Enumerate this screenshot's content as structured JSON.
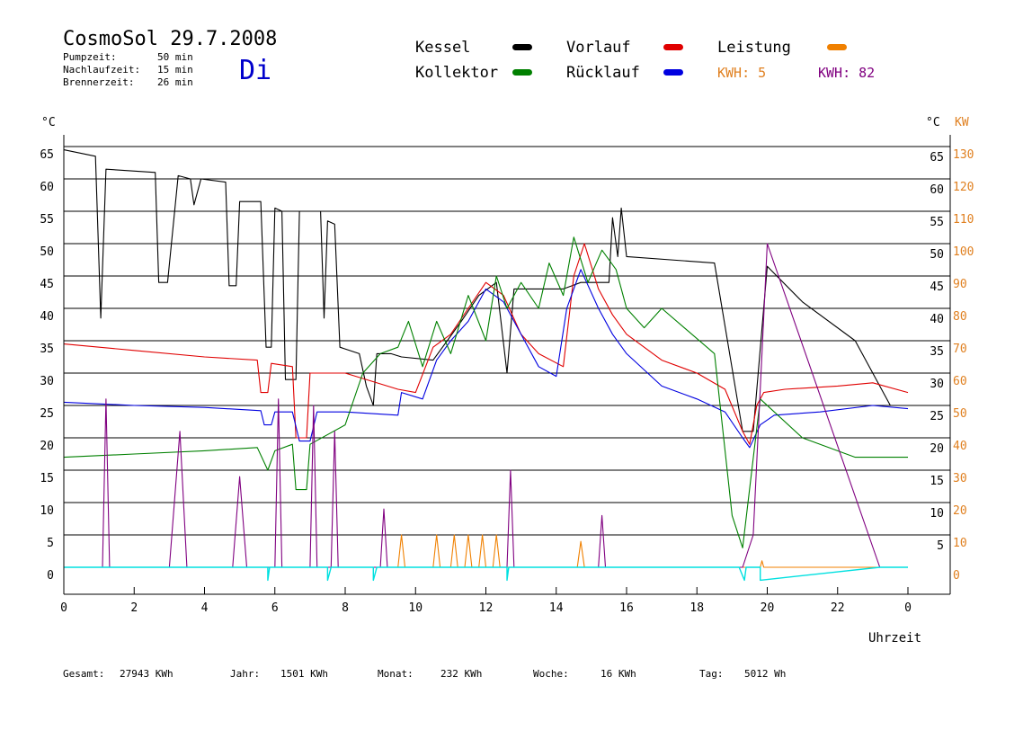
{
  "header": {
    "title": "CosmoSol 29.7.2008",
    "day": "Di",
    "stats": [
      {
        "label": "Pumpzeit:",
        "value": "50 min"
      },
      {
        "label": "Nachlaufzeit:",
        "value": "15 min"
      },
      {
        "label": "Brennerzeit:",
        "value": "26 min"
      }
    ]
  },
  "legend": {
    "items": [
      {
        "label": "Kessel",
        "color": "#000000"
      },
      {
        "label": "Vorlauf",
        "color": "#e00000"
      },
      {
        "label": "Leistung",
        "color": "#f08000"
      },
      {
        "label": "Kollektor",
        "color": "#008000"
      },
      {
        "label": "Rücklauf",
        "color": "#0000e0"
      }
    ],
    "kwh_orange": "KWH: 5",
    "kwh_purple": "KWH: 82",
    "kwh_orange_color": "#e08020",
    "kwh_purple_color": "#800080"
  },
  "axes": {
    "left_unit": "°C",
    "right_unit_c": "°C",
    "right_unit_kw": "KW",
    "x_label": "Uhrzeit"
  },
  "footer": [
    {
      "label": "Gesamt:",
      "value": "27943 KWh"
    },
    {
      "label": "Jahr:",
      "value": "1501 KWh"
    },
    {
      "label": "Monat:",
      "value": "232 KWh"
    },
    {
      "label": "Woche:",
      "value": "16 KWh"
    },
    {
      "label": "Tag:",
      "value": "5012 Wh"
    }
  ],
  "chart_data": {
    "type": "line",
    "xlim": [
      0,
      24
    ],
    "ylim": [
      -4,
      65
    ],
    "y_ticks": [
      "0",
      "5",
      "10",
      "15",
      "20",
      "25",
      "30",
      "35",
      "40",
      "45",
      "50",
      "55",
      "60",
      "65"
    ],
    "y_right_kw_ticks": [
      "0",
      "10",
      "20",
      "30",
      "40",
      "50",
      "60",
      "70",
      "80",
      "90",
      "100",
      "110",
      "120",
      "130"
    ],
    "x_ticks": [
      "0",
      "2",
      "4",
      "6",
      "8",
      "10",
      "12",
      "14",
      "16",
      "18",
      "20",
      "22",
      "0"
    ],
    "grid": true,
    "series": [
      {
        "name": "Kessel",
        "color": "#000000",
        "points": [
          [
            0,
            64.5
          ],
          [
            0.9,
            63.5
          ],
          [
            1.05,
            38.5
          ],
          [
            1.2,
            61.5
          ],
          [
            2.6,
            61
          ],
          [
            2.7,
            44
          ],
          [
            2.95,
            44
          ],
          [
            3.25,
            60.5
          ],
          [
            3.6,
            60
          ],
          [
            3.7,
            56
          ],
          [
            3.9,
            60
          ],
          [
            4.6,
            59.5
          ],
          [
            4.7,
            43.5
          ],
          [
            4.9,
            43.5
          ],
          [
            5.0,
            56.5
          ],
          [
            5.6,
            56.5
          ],
          [
            5.75,
            34
          ],
          [
            5.9,
            34
          ],
          [
            6.0,
            55.5
          ],
          [
            6.2,
            55
          ],
          [
            6.3,
            29
          ],
          [
            6.6,
            29
          ],
          [
            6.7,
            55
          ],
          [
            7.3,
            55
          ],
          [
            7.4,
            38.5
          ],
          [
            7.5,
            53.5
          ],
          [
            7.7,
            53
          ],
          [
            7.85,
            34
          ],
          [
            8.4,
            33
          ],
          [
            8.6,
            28
          ],
          [
            8.8,
            25
          ],
          [
            8.9,
            33
          ],
          [
            9.3,
            33
          ],
          [
            9.6,
            32.5
          ],
          [
            10.5,
            32
          ],
          [
            10.9,
            35
          ],
          [
            11.3,
            38
          ],
          [
            11.8,
            42
          ],
          [
            12.3,
            44
          ],
          [
            12.6,
            30
          ],
          [
            12.8,
            43
          ],
          [
            13.5,
            43
          ],
          [
            14.2,
            43
          ],
          [
            14.7,
            44
          ],
          [
            15.2,
            44
          ],
          [
            15.5,
            44
          ],
          [
            15.6,
            54
          ],
          [
            15.75,
            48
          ],
          [
            15.85,
            55.5
          ],
          [
            16,
            48
          ],
          [
            18.5,
            47
          ],
          [
            19.3,
            21
          ],
          [
            19.6,
            21
          ],
          [
            20,
            46.5
          ],
          [
            21,
            41
          ],
          [
            22.5,
            35
          ],
          [
            23.5,
            25
          ],
          [
            24,
            25
          ]
        ]
      },
      {
        "name": "Vorlauf",
        "color": "#e00000",
        "points": [
          [
            0,
            34.5
          ],
          [
            2,
            33.5
          ],
          [
            4,
            32.5
          ],
          [
            5.5,
            32
          ],
          [
            5.6,
            27
          ],
          [
            5.8,
            27
          ],
          [
            5.9,
            31.5
          ],
          [
            6.5,
            31
          ],
          [
            6.6,
            20
          ],
          [
            6.9,
            20
          ],
          [
            7,
            30
          ],
          [
            8,
            30
          ],
          [
            9.5,
            27.5
          ],
          [
            10,
            27
          ],
          [
            10.5,
            34
          ],
          [
            11,
            36
          ],
          [
            11.5,
            40
          ],
          [
            12,
            44
          ],
          [
            12.5,
            42
          ],
          [
            13,
            36
          ],
          [
            13.5,
            33
          ],
          [
            14.2,
            31
          ],
          [
            14.5,
            45
          ],
          [
            14.8,
            50
          ],
          [
            15.2,
            43
          ],
          [
            15.6,
            39
          ],
          [
            16,
            36
          ],
          [
            17,
            32
          ],
          [
            18,
            30
          ],
          [
            18.8,
            27.5
          ],
          [
            19.3,
            21
          ],
          [
            19.5,
            19
          ],
          [
            19.7,
            25
          ],
          [
            19.9,
            27
          ],
          [
            20.5,
            27.5
          ],
          [
            22,
            28
          ],
          [
            23,
            28.5
          ],
          [
            24,
            27
          ]
        ]
      },
      {
        "name": "Rücklauf",
        "color": "#0000e0",
        "points": [
          [
            0,
            25.5
          ],
          [
            2,
            25
          ],
          [
            4,
            24.7
          ],
          [
            5.6,
            24.2
          ],
          [
            5.7,
            22
          ],
          [
            5.9,
            22
          ],
          [
            6.0,
            24
          ],
          [
            6.5,
            24
          ],
          [
            6.7,
            19.5
          ],
          [
            7.0,
            19.5
          ],
          [
            7.2,
            24
          ],
          [
            8,
            24
          ],
          [
            9.5,
            23.5
          ],
          [
            9.6,
            27
          ],
          [
            10.2,
            26
          ],
          [
            10.6,
            32
          ],
          [
            11,
            35
          ],
          [
            11.5,
            38
          ],
          [
            12,
            43
          ],
          [
            12.5,
            41
          ],
          [
            13,
            36
          ],
          [
            13.5,
            31
          ],
          [
            14.0,
            29.5
          ],
          [
            14.3,
            40
          ],
          [
            14.7,
            46
          ],
          [
            15.2,
            40
          ],
          [
            15.6,
            36
          ],
          [
            16,
            33
          ],
          [
            17,
            28
          ],
          [
            18,
            26
          ],
          [
            18.8,
            24
          ],
          [
            19.3,
            20
          ],
          [
            19.5,
            18.5
          ],
          [
            19.8,
            22
          ],
          [
            20.2,
            23.5
          ],
          [
            21.5,
            24
          ],
          [
            23,
            25
          ],
          [
            24,
            24.5
          ]
        ]
      },
      {
        "name": "Kollektor",
        "color": "#008000",
        "points": [
          [
            0,
            17
          ],
          [
            2,
            17.5
          ],
          [
            4,
            18
          ],
          [
            5.5,
            18.5
          ],
          [
            5.8,
            15
          ],
          [
            6,
            18
          ],
          [
            6.5,
            19
          ],
          [
            6.6,
            12
          ],
          [
            6.9,
            12
          ],
          [
            7,
            19
          ],
          [
            8,
            22
          ],
          [
            8.5,
            30
          ],
          [
            9,
            33
          ],
          [
            9.5,
            34
          ],
          [
            9.8,
            38
          ],
          [
            10.2,
            31
          ],
          [
            10.6,
            38
          ],
          [
            11,
            33
          ],
          [
            11.5,
            42
          ],
          [
            12,
            35
          ],
          [
            12.3,
            45
          ],
          [
            12.6,
            40
          ],
          [
            13,
            44
          ],
          [
            13.5,
            40
          ],
          [
            13.8,
            47
          ],
          [
            14.2,
            42
          ],
          [
            14.5,
            51
          ],
          [
            14.9,
            44
          ],
          [
            15.3,
            49
          ],
          [
            15.7,
            46
          ],
          [
            16,
            40
          ],
          [
            16.5,
            37
          ],
          [
            17,
            40
          ],
          [
            18.5,
            33
          ],
          [
            19.0,
            8
          ],
          [
            19.3,
            3
          ],
          [
            19.8,
            26
          ],
          [
            21,
            20
          ],
          [
            22.5,
            17
          ],
          [
            23.5,
            17
          ],
          [
            24,
            17
          ]
        ]
      },
      {
        "name": "Leistung",
        "color": "#f08000",
        "points": [
          [
            0,
            0
          ],
          [
            9.5,
            0
          ],
          [
            9.6,
            5
          ],
          [
            9.7,
            0
          ],
          [
            10.5,
            0
          ],
          [
            10.6,
            5
          ],
          [
            10.7,
            0
          ],
          [
            11,
            0
          ],
          [
            11.1,
            5
          ],
          [
            11.2,
            0
          ],
          [
            11.4,
            0
          ],
          [
            11.5,
            5
          ],
          [
            11.6,
            0
          ],
          [
            11.8,
            0
          ],
          [
            11.9,
            5
          ],
          [
            12,
            0
          ],
          [
            12.2,
            0
          ],
          [
            12.3,
            5
          ],
          [
            12.4,
            0
          ],
          [
            14.6,
            0
          ],
          [
            14.7,
            4
          ],
          [
            14.8,
            0
          ],
          [
            19.8,
            0
          ],
          [
            19.85,
            1
          ],
          [
            19.9,
            0
          ],
          [
            24,
            0
          ]
        ]
      },
      {
        "name": "Leistung KW",
        "color": "#800080",
        "points": [
          [
            0,
            0
          ],
          [
            1.1,
            0
          ],
          [
            1.2,
            26
          ],
          [
            1.3,
            0
          ],
          [
            3.0,
            0
          ],
          [
            3.3,
            21
          ],
          [
            3.5,
            0
          ],
          [
            4.8,
            0
          ],
          [
            5.0,
            14
          ],
          [
            5.2,
            0
          ],
          [
            6.0,
            0
          ],
          [
            6.1,
            26
          ],
          [
            6.2,
            0
          ],
          [
            7.0,
            0
          ],
          [
            7.1,
            25
          ],
          [
            7.2,
            0
          ],
          [
            7.6,
            0
          ],
          [
            7.7,
            21
          ],
          [
            7.8,
            0
          ],
          [
            9.0,
            0
          ],
          [
            9.1,
            9
          ],
          [
            9.2,
            0
          ],
          [
            12.6,
            0
          ],
          [
            12.7,
            15
          ],
          [
            12.8,
            0
          ],
          [
            15.2,
            0
          ],
          [
            15.3,
            8
          ],
          [
            15.4,
            0
          ],
          [
            19.3,
            0
          ],
          [
            19.6,
            5
          ],
          [
            20.0,
            50
          ],
          [
            23.2,
            0
          ],
          [
            24,
            0
          ]
        ]
      },
      {
        "name": "Pumpe",
        "color": "#00e0e0",
        "points": [
          [
            0,
            0
          ],
          [
            5.8,
            0
          ],
          [
            5.8,
            -2
          ],
          [
            5.85,
            0
          ],
          [
            7.5,
            0
          ],
          [
            7.5,
            -2
          ],
          [
            7.6,
            0
          ],
          [
            8.8,
            0
          ],
          [
            8.8,
            -2
          ],
          [
            8.9,
            0
          ],
          [
            12.6,
            0
          ],
          [
            12.6,
            -2
          ],
          [
            12.65,
            0
          ],
          [
            19.2,
            0
          ],
          [
            19.35,
            -2
          ],
          [
            19.4,
            0
          ],
          [
            19.8,
            0
          ],
          [
            19.8,
            -2
          ],
          [
            23.2,
            0
          ],
          [
            24,
            0
          ]
        ]
      }
    ]
  }
}
